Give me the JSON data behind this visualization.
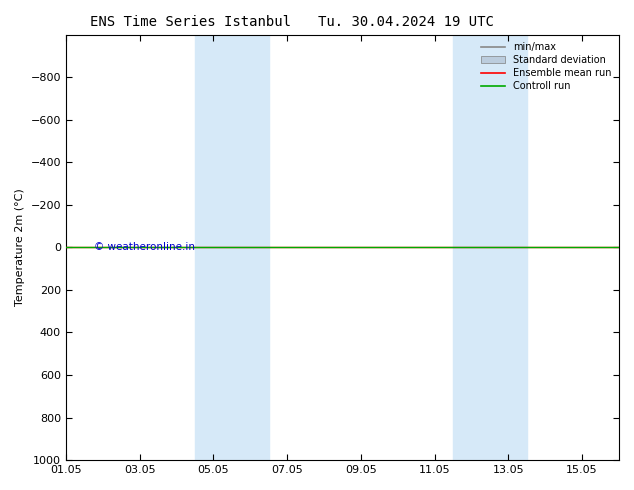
{
  "title_left": "ENS Time Series Istanbul",
  "title_right": "Tu. 30.04.2024 19 UTC",
  "ylabel": "Temperature 2m (°C)",
  "ylim": [
    -1000,
    1000
  ],
  "yticks": [
    -800,
    -600,
    -400,
    -200,
    0,
    200,
    400,
    600,
    800,
    1000
  ],
  "xtick_labels": [
    "01.05",
    "03.05",
    "05.05",
    "07.05",
    "09.05",
    "11.05",
    "13.05",
    "15.05"
  ],
  "xtick_positions": [
    0,
    2,
    4,
    6,
    8,
    10,
    12,
    14
  ],
  "xlim": [
    0,
    15
  ],
  "shaded_bands": [
    {
      "start": 3.5,
      "end": 5.5
    },
    {
      "start": 10.5,
      "end": 12.5
    }
  ],
  "shade_color": "#d6e9f8",
  "control_run_y": 0,
  "ensemble_mean_y": 0,
  "control_color": "#00aa00",
  "ensemble_color": "#ff0000",
  "minmax_color": "#888888",
  "stddev_color": "#bbccdd",
  "watermark": "© weatheronline.in",
  "watermark_color": "#0000cc",
  "background_color": "#ffffff",
  "legend_entries": [
    "min/max",
    "Standard deviation",
    "Ensemble mean run",
    "Controll run"
  ],
  "legend_colors": [
    "#888888",
    "#bbccdd",
    "#ff0000",
    "#00aa00"
  ]
}
